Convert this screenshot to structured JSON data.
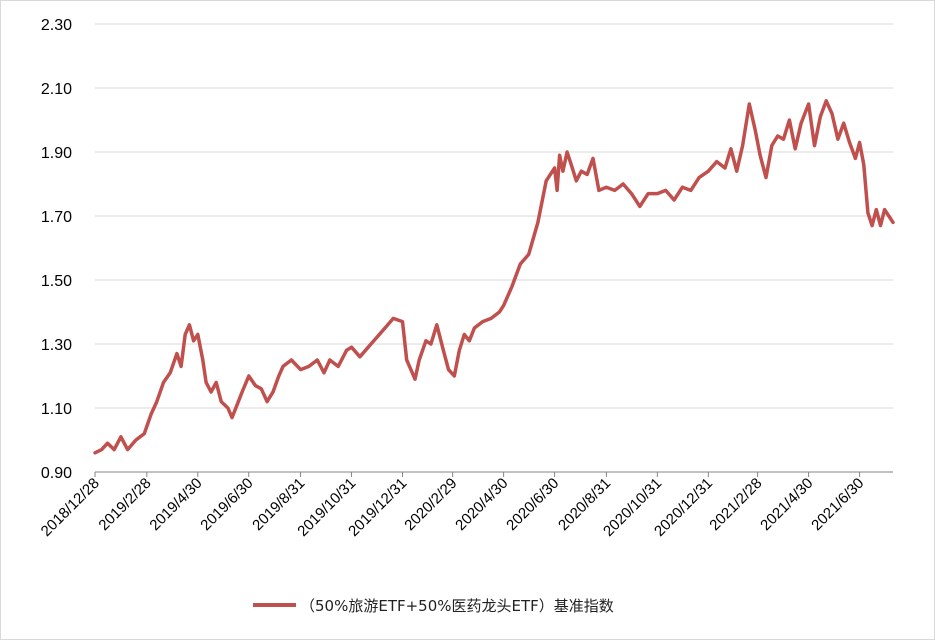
{
  "chart_data": {
    "type": "line",
    "title": "",
    "xlabel": "",
    "ylabel": "",
    "ylim": [
      0.9,
      2.3
    ],
    "y_ticks": [
      "0.90",
      "1.10",
      "1.30",
      "1.50",
      "1.70",
      "1.90",
      "2.10",
      "2.30"
    ],
    "x_tick_labels": [
      "2018/12/28",
      "2019/2/28",
      "2019/4/30",
      "2019/6/30",
      "2019/8/31",
      "2019/10/31",
      "2019/12/31",
      "2020/2/29",
      "2020/4/30",
      "2020/6/30",
      "2020/8/31",
      "2020/10/31",
      "2020/12/31",
      "2021/2/28",
      "2021/4/30",
      "2021/6/30"
    ],
    "legend": {
      "position": "bottom"
    },
    "grid": "horizontal",
    "line_color": "#c0504d",
    "series": [
      {
        "name": "（50%旅游ETF+50%医药龙头ETF）基准指数",
        "x": [
          "2018-12-28",
          "2019-01-05",
          "2019-01-12",
          "2019-01-20",
          "2019-01-28",
          "2019-02-05",
          "2019-02-15",
          "2019-02-25",
          "2019-03-05",
          "2019-03-12",
          "2019-03-20",
          "2019-03-28",
          "2019-04-05",
          "2019-04-10",
          "2019-04-15",
          "2019-04-20",
          "2019-04-25",
          "2019-04-30",
          "2019-05-06",
          "2019-05-10",
          "2019-05-16",
          "2019-05-22",
          "2019-05-28",
          "2019-06-05",
          "2019-06-10",
          "2019-06-16",
          "2019-06-22",
          "2019-06-30",
          "2019-07-08",
          "2019-07-15",
          "2019-07-22",
          "2019-07-29",
          "2019-08-05",
          "2019-08-10",
          "2019-08-20",
          "2019-08-31",
          "2019-09-10",
          "2019-09-20",
          "2019-09-28",
          "2019-10-05",
          "2019-10-15",
          "2019-10-25",
          "2019-10-31",
          "2019-11-10",
          "2019-11-20",
          "2019-11-30",
          "2019-12-10",
          "2019-12-20",
          "2019-12-31",
          "2020-01-05",
          "2020-01-10",
          "2020-01-15",
          "2020-01-20",
          "2020-01-28",
          "2020-02-03",
          "2020-02-10",
          "2020-02-18",
          "2020-02-24",
          "2020-03-02",
          "2020-03-08",
          "2020-03-14",
          "2020-03-20",
          "2020-03-26",
          "2020-04-05",
          "2020-04-15",
          "2020-04-25",
          "2020-04-30",
          "2020-05-10",
          "2020-05-20",
          "2020-05-30",
          "2020-06-10",
          "2020-06-20",
          "2020-06-30",
          "2020-07-03",
          "2020-07-06",
          "2020-07-10",
          "2020-07-15",
          "2020-07-20",
          "2020-07-26",
          "2020-08-01",
          "2020-08-08",
          "2020-08-15",
          "2020-08-22",
          "2020-08-31",
          "2020-09-10",
          "2020-09-20",
          "2020-09-30",
          "2020-10-10",
          "2020-10-20",
          "2020-10-31",
          "2020-11-10",
          "2020-11-20",
          "2020-11-30",
          "2020-12-10",
          "2020-12-20",
          "2020-12-31",
          "2021-01-10",
          "2021-01-20",
          "2021-01-27",
          "2021-02-03",
          "2021-02-10",
          "2021-02-18",
          "2021-02-25",
          "2021-03-03",
          "2021-03-10",
          "2021-03-17",
          "2021-03-24",
          "2021-03-31",
          "2021-04-07",
          "2021-04-14",
          "2021-04-21",
          "2021-04-30",
          "2021-05-07",
          "2021-05-14",
          "2021-05-21",
          "2021-05-28",
          "2021-06-04",
          "2021-06-11",
          "2021-06-18",
          "2021-06-25",
          "2021-06-30",
          "2021-07-05",
          "2021-07-10",
          "2021-07-15",
          "2021-07-20",
          "2021-07-25",
          "2021-07-30",
          "2021-08-04",
          "2021-08-09"
        ],
        "values": [
          0.96,
          0.97,
          0.99,
          0.97,
          1.01,
          0.97,
          1.0,
          1.02,
          1.08,
          1.12,
          1.18,
          1.21,
          1.27,
          1.23,
          1.33,
          1.36,
          1.31,
          1.33,
          1.25,
          1.18,
          1.15,
          1.18,
          1.12,
          1.1,
          1.07,
          1.11,
          1.15,
          1.2,
          1.17,
          1.16,
          1.12,
          1.15,
          1.2,
          1.23,
          1.25,
          1.22,
          1.23,
          1.25,
          1.21,
          1.25,
          1.23,
          1.28,
          1.29,
          1.26,
          1.29,
          1.32,
          1.35,
          1.38,
          1.37,
          1.25,
          1.22,
          1.19,
          1.25,
          1.31,
          1.3,
          1.36,
          1.28,
          1.22,
          1.2,
          1.28,
          1.33,
          1.31,
          1.35,
          1.37,
          1.38,
          1.4,
          1.42,
          1.48,
          1.55,
          1.58,
          1.68,
          1.81,
          1.85,
          1.78,
          1.89,
          1.84,
          1.9,
          1.86,
          1.81,
          1.84,
          1.83,
          1.88,
          1.78,
          1.79,
          1.78,
          1.8,
          1.77,
          1.73,
          1.77,
          1.77,
          1.78,
          1.75,
          1.79,
          1.78,
          1.82,
          1.84,
          1.87,
          1.85,
          1.91,
          1.84,
          1.92,
          2.05,
          1.97,
          1.89,
          1.82,
          1.92,
          1.95,
          1.94,
          2.0,
          1.91,
          1.99,
          2.05,
          1.92,
          2.01,
          2.06,
          2.02,
          1.94,
          1.99,
          1.93,
          1.88,
          1.93,
          1.86,
          1.71,
          1.67,
          1.72,
          1.67,
          1.72,
          1.7,
          1.68
        ]
      }
    ]
  }
}
